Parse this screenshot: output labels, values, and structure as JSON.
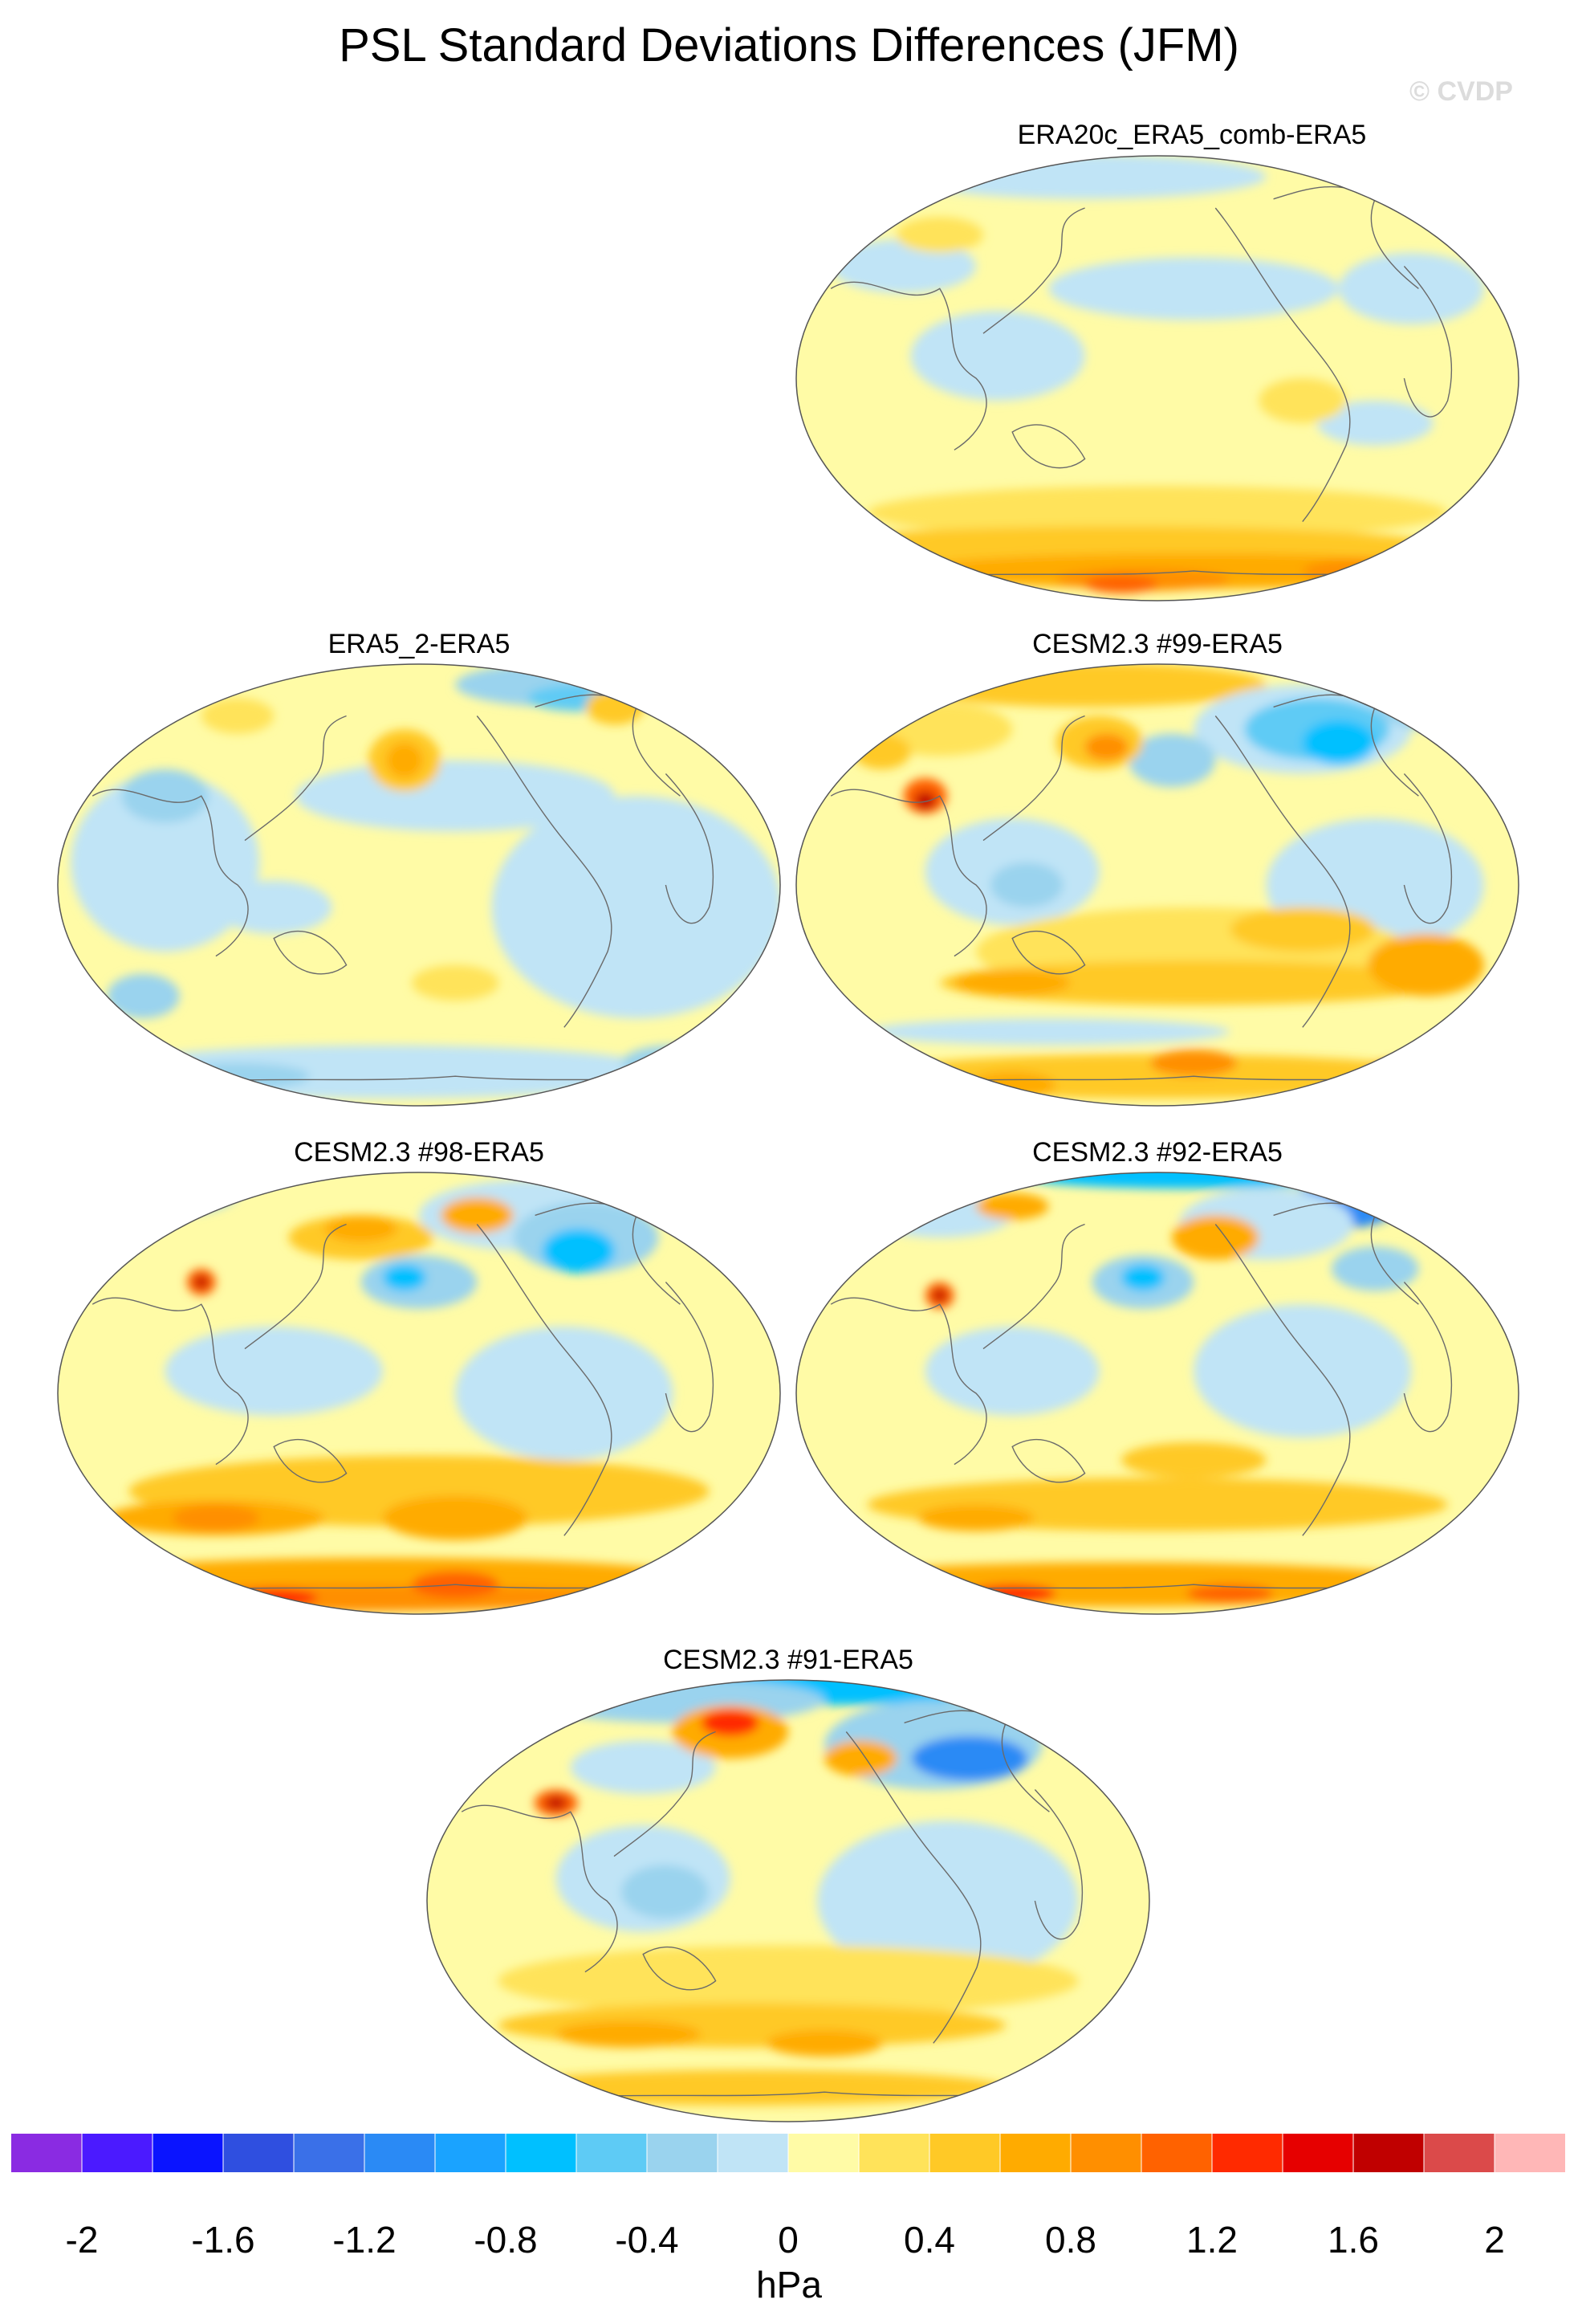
{
  "title": "PSL Standard Deviations Differences (JFM)",
  "watermark": "© CVDP",
  "panels": [
    {
      "label": "ERA20c_ERA5_comb-ERA5",
      "pattern": "era20c"
    },
    {
      "label": "ERA5_2-ERA5",
      "pattern": "era5_2"
    },
    {
      "label": "CESM2.3 #99-ERA5",
      "pattern": "cesm99"
    },
    {
      "label": "CESM2.3 #98-ERA5",
      "pattern": "cesm98"
    },
    {
      "label": "CESM2.3 #92-ERA5",
      "pattern": "cesm92"
    },
    {
      "label": "CESM2.3 #91-ERA5",
      "pattern": "cesm91"
    }
  ],
  "colorbar": {
    "units": "hPa",
    "colors": [
      "#8a2be2",
      "#4b1aff",
      "#0a14ff",
      "#2f4fe0",
      "#3a70e8",
      "#2a8af5",
      "#1aa3ff",
      "#00c0ff",
      "#5ecbf5",
      "#9ad3ee",
      "#c0e4f6",
      "#fffba6",
      "#ffe35a",
      "#ffc926",
      "#ffab00",
      "#ff8f00",
      "#ff6200",
      "#ff2a00",
      "#e60000",
      "#c00000",
      "#db4a4a",
      "#ffb7b7"
    ],
    "ticks": [
      "-2",
      "-1.6",
      "-1.2",
      "-0.8",
      "-0.4",
      "0",
      "0.4",
      "0.8",
      "1.2",
      "1.6",
      "2"
    ]
  }
}
